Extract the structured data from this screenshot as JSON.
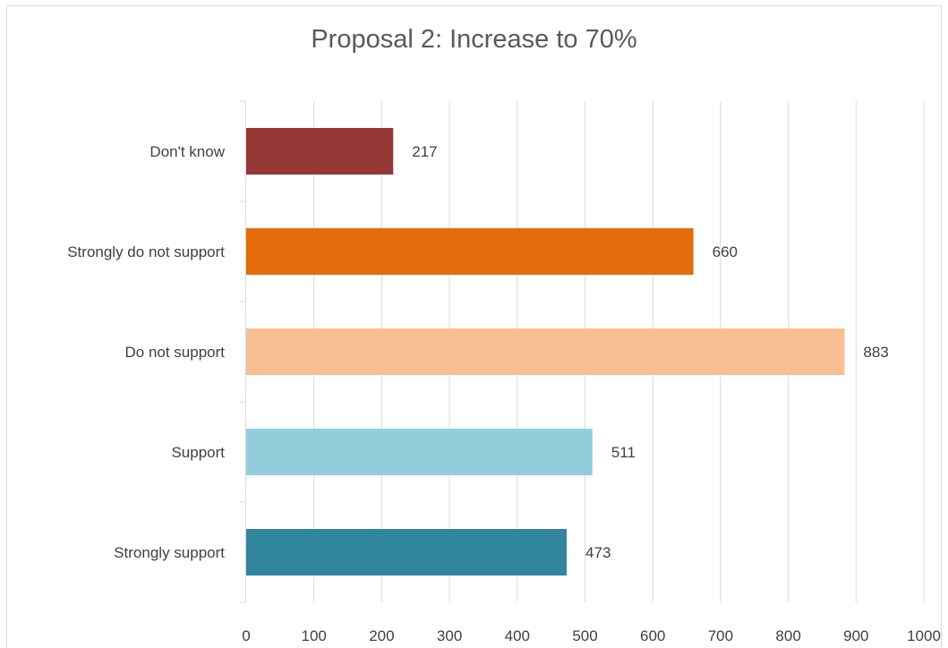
{
  "chart_data": {
    "type": "bar",
    "orientation": "horizontal",
    "title": "Proposal 2: Increase to 70%",
    "xlabel": "",
    "ylabel": "",
    "categories": [
      "Don't know",
      "Strongly do not support",
      "Do not support",
      "Support",
      "Strongly support"
    ],
    "values": [
      217,
      660,
      883,
      511,
      473
    ],
    "colors": [
      "#953735",
      "#e46c0a",
      "#f8bf92",
      "#92cddc",
      "#31859c"
    ],
    "xlim": [
      0,
      1000
    ],
    "xticks": [
      0,
      100,
      200,
      300,
      400,
      500,
      600,
      700,
      800,
      900,
      1000
    ],
    "grid": true,
    "legend": "none",
    "data_labels": true
  }
}
